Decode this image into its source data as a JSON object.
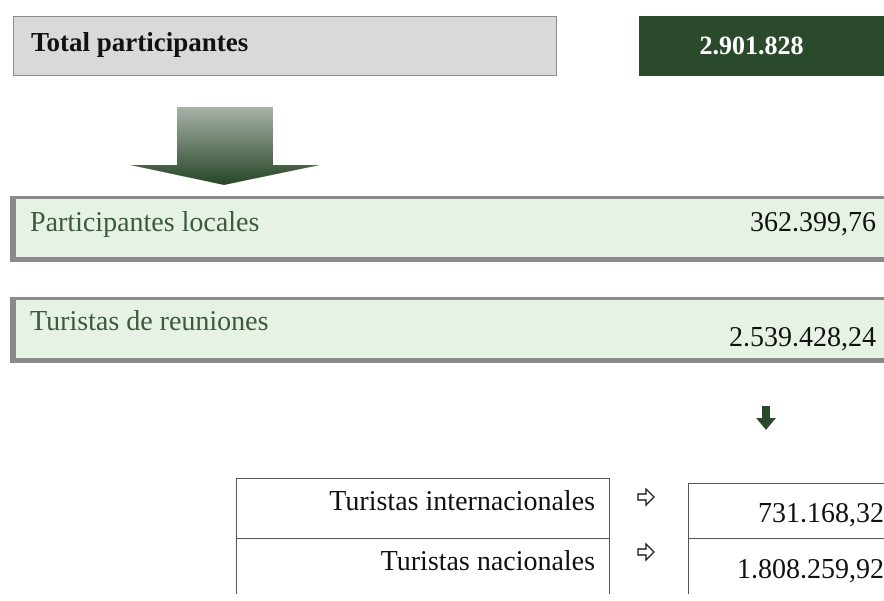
{
  "total": {
    "label": "Total participantes",
    "value": "2.901.828"
  },
  "locales": {
    "label": "Participantes locales",
    "value": "362.399,76"
  },
  "reuniones": {
    "label": "Turistas de reuniones",
    "value": "2.539.428,24"
  },
  "breakdown": {
    "rows": [
      {
        "label": "Turistas internacionales",
        "value": "731.168,32"
      },
      {
        "label": "Turistas nacionales",
        "value": "1.808.259,92"
      }
    ]
  }
}
